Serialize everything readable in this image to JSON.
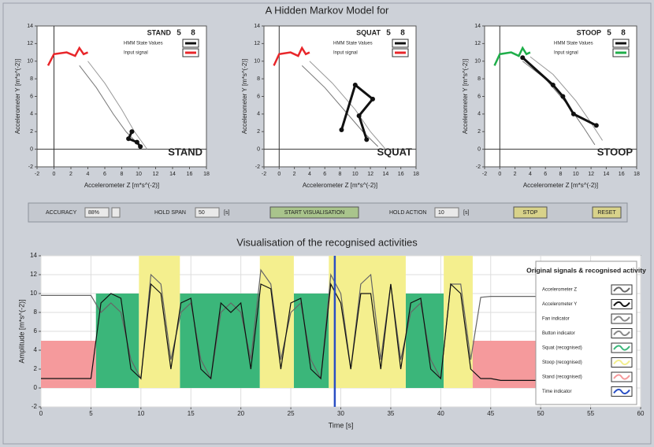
{
  "header": {
    "title": "A Hidden Markov Model for",
    "subtitle": "Visualisation of the recognised activities"
  },
  "controls": {
    "accuracy": {
      "label": "ACCURACY",
      "value": "88%"
    },
    "hold_span": {
      "label": "HOLD SPAN",
      "value": "50",
      "unit": "[s]"
    },
    "start_button": "START VISUALISATION",
    "hold_action": {
      "label": "HOLD ACTION",
      "value": "10",
      "unit": "[s]"
    },
    "stop_button": "STOP",
    "reset_button": "RESET"
  },
  "chart_data": [
    {
      "type": "state",
      "title": "STAND",
      "states": [
        "5",
        "8"
      ],
      "label": "STAND",
      "x_label": "Accelerometer Z [m*s^(-2)]",
      "y_label": "Accelerometer Y [m*s^(-2)]",
      "xlim": [
        -2,
        18
      ],
      "ylim": [
        -2,
        14
      ],
      "xticks": [
        -2,
        0,
        2,
        4,
        6,
        8,
        10,
        12,
        14,
        16,
        18
      ],
      "yticks": [
        -2,
        0,
        2,
        4,
        6,
        8,
        10,
        12,
        14
      ],
      "crosshair": true,
      "series": [
        {
          "color": "#777777",
          "x": [
            3,
            5,
            7,
            8.5,
            10
          ],
          "y": [
            9.5,
            7,
            4,
            2,
            0.5
          ]
        },
        {
          "color": "#999999",
          "x": [
            4,
            6,
            8,
            9.5,
            11
          ],
          "y": [
            10,
            7.5,
            4.5,
            2,
            0
          ]
        },
        {
          "name": "HMM State Values",
          "color": "#111111",
          "marker": true,
          "x": [
            9.2,
            8.8,
            9.8,
            10.2
          ],
          "y": [
            2,
            1.2,
            0.8,
            0.3
          ]
        },
        {
          "name": "Input signal",
          "color": "#e8262a",
          "x": [
            -0.7,
            0,
            1.5,
            2.5,
            3,
            3.5,
            4
          ],
          "y": [
            9.5,
            10.8,
            11,
            10.6,
            11.5,
            10.8,
            11
          ]
        }
      ]
    },
    {
      "type": "state",
      "title": "SQUAT",
      "states": [
        "5",
        "8"
      ],
      "label": "SQUAT",
      "x_label": "Accelerometer Z [m*s^(-2)]",
      "y_label": "Accelerometer Y [m*s^(-2)]",
      "xlim": [
        -2,
        18
      ],
      "ylim": [
        -2,
        14
      ],
      "xticks": [
        -2,
        0,
        2,
        4,
        6,
        8,
        10,
        12,
        14,
        16,
        18
      ],
      "yticks": [
        -2,
        0,
        2,
        4,
        6,
        8,
        10,
        12,
        14
      ],
      "crosshair": true,
      "series": [
        {
          "color": "#777777",
          "x": [
            3,
            6,
            9,
            11,
            13
          ],
          "y": [
            9.5,
            7,
            4,
            2,
            0.3
          ]
        },
        {
          "color": "#999999",
          "x": [
            4,
            7,
            10,
            12,
            14
          ],
          "y": [
            10,
            7.5,
            4.5,
            2,
            0
          ]
        },
        {
          "name": "HMM State Values",
          "color": "#111111",
          "marker": true,
          "x": [
            8.2,
            10,
            12.3,
            10.5,
            11.5
          ],
          "y": [
            2.2,
            7.3,
            5.7,
            3.8,
            1.1
          ]
        },
        {
          "name": "Input signal",
          "color": "#e8262a",
          "x": [
            -0.7,
            0,
            1.5,
            2.5,
            3,
            3.5,
            4
          ],
          "y": [
            9.5,
            10.8,
            11,
            10.6,
            11.5,
            10.8,
            11
          ]
        }
      ]
    },
    {
      "type": "state",
      "title": "STOOP",
      "states": [
        "5",
        "8"
      ],
      "label": "STOOP",
      "x_label": "Accelerometer Z [m*s^(-2)]",
      "y_label": "Accelerometer Y [m*s^(-2)]",
      "xlim": [
        -2,
        18
      ],
      "ylim": [
        -2,
        14
      ],
      "xticks": [
        -2,
        0,
        2,
        4,
        6,
        8,
        10,
        12,
        14,
        16,
        18
      ],
      "yticks": [
        -2,
        0,
        2,
        4,
        6,
        8,
        10,
        12,
        14
      ],
      "crosshair": true,
      "series": [
        {
          "color": "#777777",
          "x": [
            3,
            6,
            9,
            11,
            12.5
          ],
          "y": [
            10,
            8,
            5,
            2.5,
            0.5
          ]
        },
        {
          "color": "#999999",
          "x": [
            4,
            7,
            10,
            12,
            13.5
          ],
          "y": [
            10.5,
            8.5,
            5.5,
            3,
            1
          ]
        },
        {
          "name": "HMM State Values",
          "color": "#111111",
          "marker": true,
          "x": [
            3,
            7,
            8.3,
            9.7,
            12.7
          ],
          "y": [
            10.4,
            7.3,
            6,
            4,
            2.7
          ]
        },
        {
          "name": "Input signal",
          "color": "#1fae4a",
          "x": [
            -0.7,
            0,
            1.5,
            2.5,
            3,
            3.5,
            4
          ],
          "y": [
            9.5,
            10.8,
            11,
            10.6,
            11.5,
            10.8,
            11
          ]
        }
      ]
    },
    {
      "type": "activity",
      "x_label": "Time [s]",
      "y_label": "Amplitude [m*s^(-2)]",
      "legend_title": "Original signals & recognised activity",
      "xlim": [
        0,
        60
      ],
      "ylim": [
        -2,
        14
      ],
      "xticks": [
        0,
        5,
        10,
        15,
        20,
        25,
        30,
        35,
        40,
        45,
        50,
        55,
        60
      ],
      "yticks": [
        -2,
        0,
        2,
        4,
        6,
        8,
        10,
        12,
        14
      ],
      "grid": true,
      "activities": [
        {
          "name": "Squat (recognised)",
          "color": "#3bb67a",
          "level": 10,
          "intervals": [
            [
              5.5,
              9.8
            ],
            [
              13.9,
              21.9
            ],
            [
              25.3,
              28.8
            ],
            [
              36.5,
              40.3
            ]
          ]
        },
        {
          "name": "Stoop (recognised)",
          "color": "#f4ef8e",
          "level": 14,
          "intervals": [
            [
              9.8,
              13.9
            ],
            [
              21.9,
              25.3
            ],
            [
              28.8,
              36.5
            ],
            [
              40.3,
              43.2
            ]
          ]
        },
        {
          "name": "Stand (recognised)",
          "color": "#f59a9c",
          "level": 5,
          "intervals": [
            [
              0,
              5.5
            ],
            [
              43.2,
              49.7
            ]
          ]
        }
      ],
      "x": [
        0,
        1,
        2,
        3,
        4,
        5,
        6,
        7,
        8,
        9,
        10,
        11,
        12,
        13,
        14,
        15,
        16,
        17,
        18,
        19,
        20,
        21,
        22,
        23,
        24,
        25,
        26,
        27,
        28,
        29,
        30,
        31,
        32,
        33,
        34,
        35,
        36,
        37,
        38,
        39,
        40,
        41,
        42,
        43,
        44,
        45,
        46,
        47,
        48,
        49,
        50
      ],
      "series": [
        {
          "name": "Accelerometer Z",
          "color": "#666666",
          "values": [
            9.8,
            9.8,
            9.8,
            9.8,
            9.8,
            9.8,
            8,
            9,
            8,
            3,
            1,
            12,
            11,
            3,
            8,
            9,
            3,
            1,
            8,
            9,
            8,
            3,
            12.5,
            11,
            3,
            8,
            9,
            3,
            1,
            12,
            10,
            2,
            11,
            12,
            3,
            11,
            3,
            8,
            9,
            3,
            1,
            11,
            11,
            3,
            9.6,
            9.7,
            9.7,
            9.7,
            9.7,
            9.7,
            9.7
          ]
        },
        {
          "name": "Accelerometer Y",
          "color": "#111111",
          "values": [
            1,
            1,
            1,
            1,
            1,
            1,
            9,
            10,
            9.5,
            2,
            1,
            11,
            10,
            2,
            9,
            9.5,
            2,
            1,
            9,
            8,
            9,
            2,
            11,
            10.5,
            2,
            9,
            9.5,
            2,
            1,
            11,
            9,
            2,
            10,
            10,
            2,
            11,
            2,
            9,
            9.5,
            2,
            1,
            11,
            10,
            2,
            1,
            1,
            0.8,
            0.8,
            0.8,
            0.8,
            0.8
          ]
        },
        {
          "name": "Fan indicator",
          "color": "#888888"
        },
        {
          "name": "Button indicator",
          "color": "#888888"
        }
      ],
      "time_indicator": {
        "name": "Time indicator",
        "color": "#2a4fc4",
        "x": 29.4
      }
    }
  ]
}
